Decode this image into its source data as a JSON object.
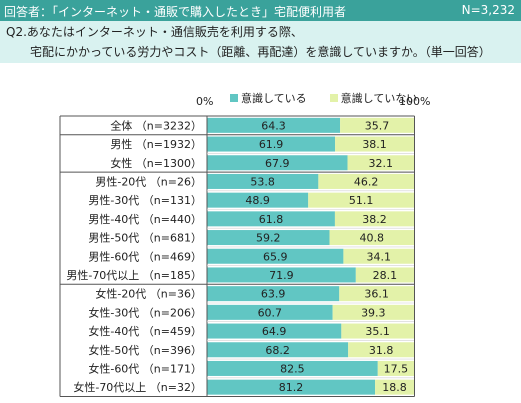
{
  "header": {
    "respondents_text": "回答者：「インターネット・通販で購入したとき」宅配便利用者",
    "sample_text": "N=3,232"
  },
  "question": {
    "line1": "Q2.あなたはインターネット・通信販売を利用する際、",
    "line2": "宅配にかかっている労力やコスト（距離、再配達）を意識していますか。（単一回答）"
  },
  "colors": {
    "aware": "#61c6c3",
    "not_aware": "#e3f2a9",
    "header": "#3aa29b",
    "question_bg": "#d9f2f0"
  },
  "chart_data": {
    "type": "bar",
    "orientation": "horizontal-stacked-100",
    "xlim": [
      0,
      100
    ],
    "axis_labels": {
      "min": "0%",
      "max": "100%"
    },
    "legend": [
      "意識している",
      "意識していない"
    ],
    "categories": [
      "全体 （n=3232）",
      "男性 （n=1932）",
      "女性 （n=1300）",
      "男性-20代 （n=26）",
      "男性-30代 （n=131）",
      "男性-40代 （n=440）",
      "男性-50代 （n=681）",
      "男性-60代 （n=469）",
      "男性-70代以上 （n=185）",
      "女性-20代 （n=36）",
      "女性-30代 （n=206）",
      "女性-40代 （n=459）",
      "女性-50代 （n=396）",
      "女性-60代 （n=171）",
      "女性-70代以上 （n=32）"
    ],
    "series": [
      {
        "name": "意識している",
        "values": [
          64.3,
          61.9,
          67.9,
          53.8,
          48.9,
          61.8,
          59.2,
          65.9,
          71.9,
          63.9,
          60.7,
          64.9,
          68.2,
          82.5,
          81.2
        ]
      },
      {
        "name": "意識していない",
        "values": [
          35.7,
          38.1,
          32.1,
          46.2,
          51.1,
          38.2,
          40.8,
          34.1,
          28.1,
          36.1,
          39.3,
          35.1,
          31.8,
          17.5,
          18.8
        ]
      }
    ],
    "group_boundaries_after": [
      0,
      2,
      8
    ]
  }
}
